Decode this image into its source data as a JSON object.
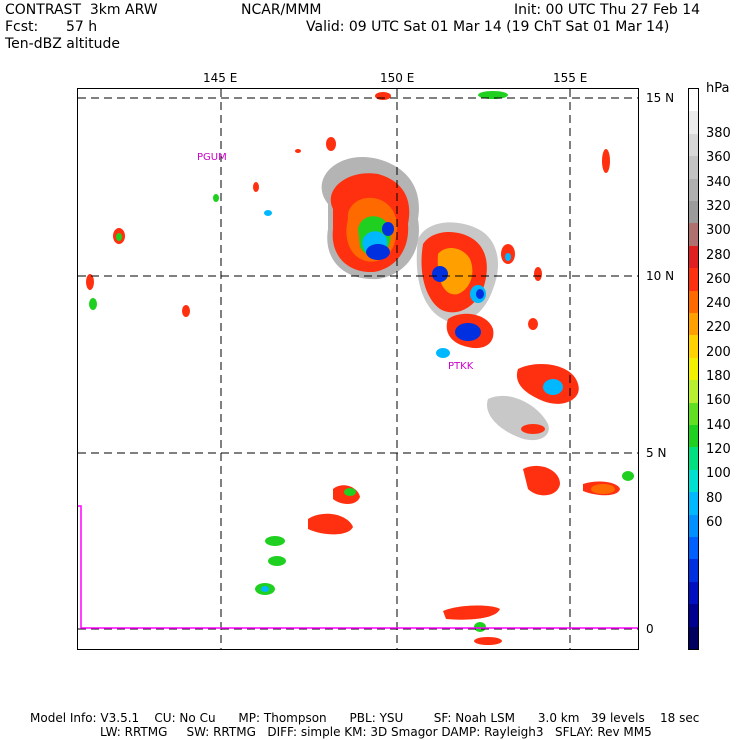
{
  "header": {
    "model": "CONTRAST  3km ARW",
    "center": "NCAR/MMM",
    "init": "Init: 00 UTC Thu 27 Feb 14",
    "fcst_label": "Fcst:",
    "fcst_value": "57 h",
    "valid": "Valid: 09 UTC Sat 01 Mar 14 (19 ChT Sat 01 Mar 14)",
    "field": "Ten-dBZ altitude"
  },
  "map": {
    "lon_labels": [
      "145 E",
      "150 E",
      "155 E"
    ],
    "lat_labels": [
      "15 N",
      "10 N",
      "5 N",
      "0"
    ],
    "stations": [
      "PGUM",
      "PTKK"
    ]
  },
  "colorbar": {
    "unit": "hPa",
    "labels": [
      "380",
      "360",
      "340",
      "320",
      "300",
      "280",
      "260",
      "240",
      "220",
      "200",
      "180",
      "160",
      "140",
      "120",
      "100",
      "80",
      "60"
    ],
    "colors": [
      "#ffffff",
      "#ebebeb",
      "#d7d7d7",
      "#c3c3c3",
      "#afafaf",
      "#9b9b9b",
      "#b07070",
      "#e02020",
      "#ff3010",
      "#ff6a00",
      "#ffa000",
      "#ffd200",
      "#f0f000",
      "#b8f030",
      "#60e020",
      "#20d020",
      "#00e080",
      "#00e0d0",
      "#00b8ff",
      "#0090ff",
      "#0060ff",
      "#0030e0",
      "#0010c0",
      "#000090",
      "#000060"
    ]
  },
  "footer": {
    "line1": "Model Info: V3.5.1    CU: No Cu      MP: Thompson      PBL: YSU        SF: Noah LSM      3.0 km   39 levels    18 sec",
    "line2": "LW: RRTMG     SW: RRTMG   DIFF: simple KM: 3D Smagor DAMP: Rayleigh3   SFLAY: Rev MM5"
  }
}
